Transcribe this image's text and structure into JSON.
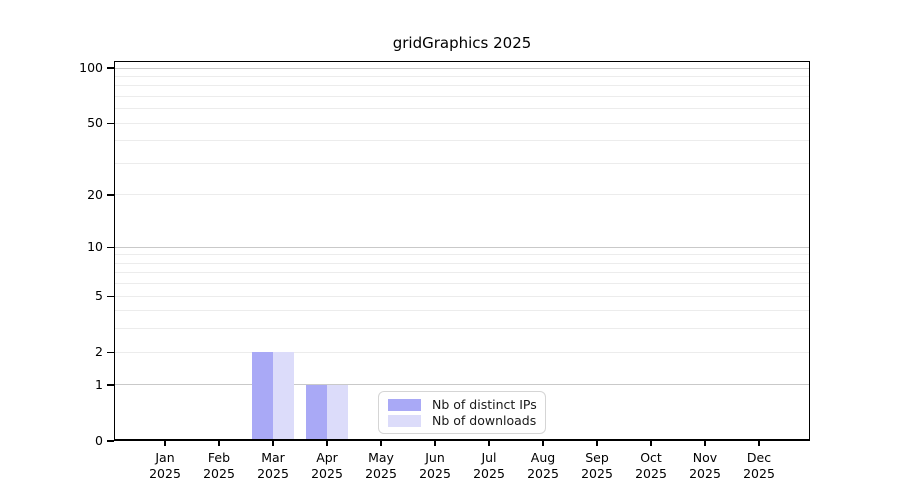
{
  "figure": {
    "title": "gridGraphics 2025"
  },
  "chart_data": {
    "type": "bar",
    "title": "gridGraphics 2025",
    "categories": [
      "Jan",
      "Feb",
      "Mar",
      "Apr",
      "May",
      "Jun",
      "Jul",
      "Aug",
      "Sep",
      "Oct",
      "Nov",
      "Dec"
    ],
    "category_year": "2025",
    "series": [
      {
        "name": "Nb of distinct IPs",
        "color": "#a9a9f6",
        "values": [
          0,
          0,
          2,
          1,
          0,
          0,
          0,
          0,
          0,
          0,
          0,
          0
        ]
      },
      {
        "name": "Nb of downloads",
        "color": "#dcdcfa",
        "values": [
          0,
          0,
          2,
          1,
          0,
          0,
          0,
          0,
          0,
          0,
          0,
          0
        ]
      }
    ],
    "y_axis": {
      "scale": "log10(value+1)",
      "ylim": [
        0,
        100
      ],
      "tick_values": [
        0,
        1,
        2,
        5,
        10,
        20,
        50,
        100
      ],
      "tick_labels": [
        "0",
        "1",
        "2",
        "5",
        "10",
        "20",
        "50",
        "100"
      ],
      "grid_major_values": [
        1,
        10,
        100
      ],
      "grid_minor_values": [
        2,
        3,
        4,
        5,
        6,
        7,
        8,
        9,
        20,
        30,
        40,
        50,
        60,
        70,
        80,
        90
      ]
    },
    "xlabel": "",
    "ylabel": "",
    "legend": {
      "position": "bottom-center-inside",
      "items": [
        "Nb of distinct IPs",
        "Nb of downloads"
      ]
    },
    "colors": {
      "grid_major": "#c9c9c9",
      "grid_minor": "#ececec",
      "axis": "#000000",
      "background": "#ffffff"
    }
  }
}
